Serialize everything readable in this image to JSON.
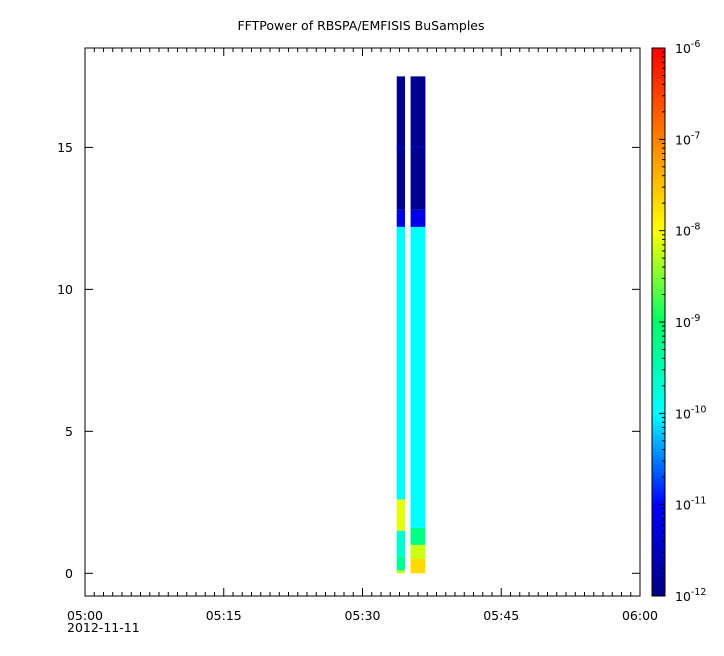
{
  "chart_data": {
    "type": "heatmap",
    "title": "FFTPower of RBSPA/EMFISIS  BuSamples",
    "xlabel": "",
    "ylabel": "",
    "x_axis": {
      "range": [
        "05:00",
        "06:00"
      ],
      "range_minutes": [
        0,
        60
      ],
      "ticks": [
        {
          "minute": 0,
          "label": "05:00"
        },
        {
          "minute": 15,
          "label": "05:15"
        },
        {
          "minute": 30,
          "label": "05:30"
        },
        {
          "minute": 45,
          "label": "05:45"
        },
        {
          "minute": 60,
          "label": "06:00"
        }
      ],
      "minor_tick_step_minutes": 1,
      "date_label": "2012-11-11"
    },
    "y_axis": {
      "range": [
        -0.8,
        18.5
      ],
      "ticks": [
        0,
        5,
        10,
        15
      ],
      "tick_labels": [
        "0",
        "5",
        "10",
        "15"
      ]
    },
    "colorbar": {
      "scale": "log",
      "range": [
        1e-12,
        1e-06
      ],
      "tick_exponents": [
        -12,
        -11,
        -10,
        -9,
        -8,
        -7,
        -6
      ],
      "tick_base": "10",
      "colors": [
        "#000080",
        "#0000ff",
        "#00ffff",
        "#00ff66",
        "#ffff00",
        "#ff8000",
        "#ff0000"
      ]
    },
    "data_blocks": [
      {
        "x_start_min": 33.7,
        "x_end_min": 34.6,
        "y_range": [
          0,
          17.5
        ],
        "bands": [
          {
            "y": [
              0,
              0.1
            ],
            "log_power": -8.2
          },
          {
            "y": [
              0.1,
              0.6
            ],
            "log_power": -9.3
          },
          {
            "y": [
              0.6,
              1.5
            ],
            "log_power": -9.7
          },
          {
            "y": [
              1.5,
              2.6
            ],
            "log_power": -8.1
          },
          {
            "y": [
              2.6,
              12.2
            ],
            "log_power": -10.0
          },
          {
            "y": [
              12.2,
              12.8
            ],
            "log_power": -11.2
          },
          {
            "y": [
              12.8,
              17.5
            ],
            "log_power": -11.9
          }
        ],
        "line_feature": {
          "y": 15.0,
          "log_power": -11.3
        }
      },
      {
        "x_start_min": 35.2,
        "x_end_min": 36.8,
        "y_range": [
          0,
          17.5
        ],
        "bands": [
          {
            "y": [
              0,
              0.5
            ],
            "log_power": -7.7
          },
          {
            "y": [
              0.5,
              1.0
            ],
            "log_power": -8.2
          },
          {
            "y": [
              1.0,
              1.6
            ],
            "log_power": -9.2
          },
          {
            "y": [
              1.6,
              12.2
            ],
            "log_power": -10.0
          },
          {
            "y": [
              12.2,
              12.8
            ],
            "log_power": -11.2
          },
          {
            "y": [
              12.8,
              17.5
            ],
            "log_power": -11.9
          }
        ],
        "line_feature": {
          "y": 15.0,
          "log_power": -11.3
        }
      }
    ]
  }
}
